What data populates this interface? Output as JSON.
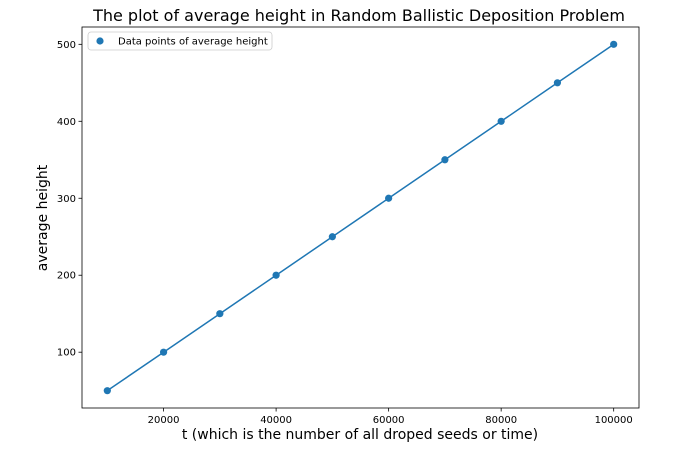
{
  "chart_data": {
    "type": "line",
    "title": "The plot of average height in Random Ballistic Deposition Problem",
    "xlabel": "t (which is the number of all droped seeds or time)",
    "ylabel": "average height",
    "x": [
      10000,
      20000,
      30000,
      40000,
      50000,
      60000,
      70000,
      80000,
      90000,
      100000
    ],
    "series": [
      {
        "name": "Data points of average height",
        "values": [
          50,
          100,
          150,
          200,
          250,
          300,
          350,
          400,
          450,
          500
        ]
      }
    ],
    "xlim": [
      5500,
      104500
    ],
    "ylim": [
      27.5,
      522.5
    ],
    "xticks": [
      20000,
      40000,
      60000,
      80000,
      100000
    ],
    "xtick_labels": [
      "20000",
      "40000",
      "60000",
      "80000",
      "100000"
    ],
    "yticks": [
      100,
      200,
      300,
      400,
      500
    ],
    "ytick_labels": [
      "100",
      "200",
      "300",
      "400",
      "500"
    ],
    "grid": false,
    "legend_position": "upper-left",
    "color": "#1f77b4"
  }
}
